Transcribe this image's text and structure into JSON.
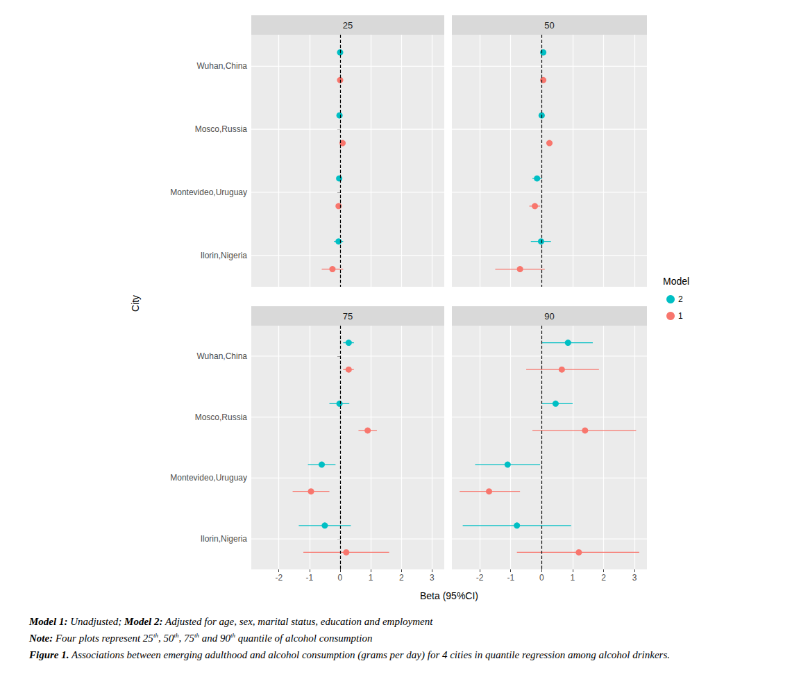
{
  "chart_data": {
    "type": "forest",
    "categories": [
      "Wuhan,China",
      "Mosco,Russia",
      "Montevideo,Uruguay",
      "Ilorin,Nigeria"
    ],
    "x_label": "Beta (95%CI)",
    "y_label": "City",
    "legend_title": "Model",
    "xlim": [
      -2.9,
      3.4
    ],
    "xticks": [
      -2,
      -1,
      0,
      1,
      2,
      3
    ],
    "vline": 0,
    "grid": true,
    "legend": "right",
    "panels": [
      {
        "title": "25",
        "series": [
          {
            "name": "2",
            "color": "#00BFC4",
            "values": [
              0,
              -0.02,
              -0.03,
              -0.05
            ],
            "ci_low": [
              -0.05,
              -0.06,
              -0.07,
              -0.2
            ],
            "ci_high": [
              0.05,
              0.02,
              0.01,
              0.1
            ]
          },
          {
            "name": "1",
            "color": "#F8766D",
            "values": [
              0,
              0.08,
              -0.05,
              -0.25
            ],
            "ci_low": [
              -0.03,
              0.03,
              -0.1,
              -0.6
            ],
            "ci_high": [
              0.03,
              0.13,
              0,
              0.1
            ]
          }
        ]
      },
      {
        "title": "50",
        "series": [
          {
            "name": "2",
            "color": "#00BFC4",
            "values": [
              0.05,
              0,
              -0.15,
              -0.02
            ],
            "ci_low": [
              -0.03,
              -0.06,
              -0.3,
              -0.35
            ],
            "ci_high": [
              0.12,
              0.06,
              0,
              0.3
            ]
          },
          {
            "name": "1",
            "color": "#F8766D",
            "values": [
              0.05,
              0.25,
              -0.22,
              -0.7
            ],
            "ci_low": [
              -0.02,
              0.15,
              -0.4,
              -1.5
            ],
            "ci_high": [
              0.1,
              0.35,
              -0.05,
              0.1
            ]
          }
        ]
      },
      {
        "title": "75",
        "series": [
          {
            "name": "2",
            "color": "#00BFC4",
            "values": [
              0.28,
              -0.02,
              -0.6,
              -0.5
            ],
            "ci_low": [
              0.1,
              -0.35,
              -1.05,
              -1.35
            ],
            "ci_high": [
              0.45,
              0.3,
              -0.15,
              0.35
            ]
          },
          {
            "name": "1",
            "color": "#F8766D",
            "values": [
              0.28,
              0.9,
              -0.95,
              0.2
            ],
            "ci_low": [
              0.1,
              0.6,
              -1.55,
              -1.2
            ],
            "ci_high": [
              0.45,
              1.2,
              -0.35,
              1.6
            ]
          }
        ]
      },
      {
        "title": "90",
        "series": [
          {
            "name": "2",
            "color": "#00BFC4",
            "values": [
              0.85,
              0.45,
              -1.1,
              -0.8
            ],
            "ci_low": [
              0,
              0,
              -2.15,
              -2.55
            ],
            "ci_high": [
              1.65,
              1,
              -0.05,
              0.95
            ]
          },
          {
            "name": "1",
            "color": "#F8766D",
            "values": [
              0.65,
              1.4,
              -1.7,
              1.2
            ],
            "ci_low": [
              -0.5,
              -0.3,
              -2.65,
              -0.8
            ],
            "ci_high": [
              1.85,
              3.05,
              -0.7,
              3.15
            ]
          }
        ]
      }
    ],
    "notes": [
      [
        {
          "text": "Model 1:",
          "style": "bold"
        },
        {
          "text": " Unadjusted; "
        },
        {
          "text": "Model 2:",
          "style": "bold"
        },
        {
          "text": " Adjusted for age, sex, marital status, education and employment"
        }
      ],
      [
        {
          "text": "Note:",
          "style": "bold"
        },
        {
          "text": " Four plots represent 25"
        },
        {
          "text": "th",
          "style": "sup"
        },
        {
          "text": ", 50"
        },
        {
          "text": "th",
          "style": "sup"
        },
        {
          "text": ", 75"
        },
        {
          "text": "th",
          "style": "sup"
        },
        {
          "text": " and 90"
        },
        {
          "text": "th",
          "style": "sup"
        },
        {
          "text": " quantile of alcohol consumption"
        }
      ],
      [
        {
          "text": "Figure 1.",
          "style": "bold"
        },
        {
          "text": " Associations between emerging adulthood and alcohol consumption (grams per day) for 4 cities in quantile regression among alcohol drinkers."
        }
      ]
    ]
  }
}
